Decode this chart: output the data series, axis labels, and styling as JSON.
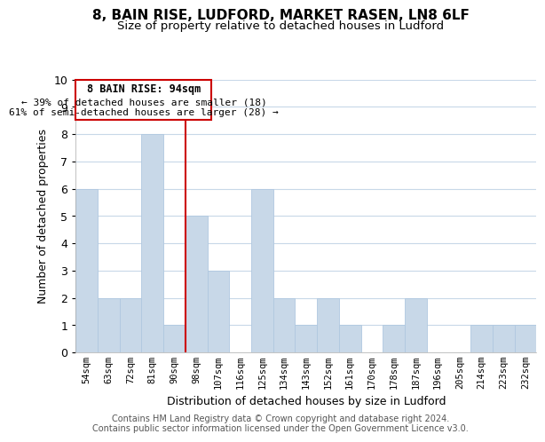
{
  "title_line1": "8, BAIN RISE, LUDFORD, MARKET RASEN, LN8 6LF",
  "title_line2": "Size of property relative to detached houses in Ludford",
  "xlabel": "Distribution of detached houses by size in Ludford",
  "ylabel": "Number of detached properties",
  "categories": [
    "54sqm",
    "63sqm",
    "72sqm",
    "81sqm",
    "90sqm",
    "98sqm",
    "107sqm",
    "116sqm",
    "125sqm",
    "134sqm",
    "143sqm",
    "152sqm",
    "161sqm",
    "170sqm",
    "178sqm",
    "187sqm",
    "196sqm",
    "205sqm",
    "214sqm",
    "223sqm",
    "232sqm"
  ],
  "values": [
    6,
    2,
    2,
    8,
    1,
    5,
    3,
    0,
    6,
    2,
    1,
    2,
    1,
    0,
    1,
    2,
    0,
    0,
    1,
    1,
    1
  ],
  "bar_color": "#c8d8e8",
  "bar_edge_color": "#b0c8e0",
  "highlight_line_color": "#cc0000",
  "ylim": [
    0,
    10
  ],
  "yticks": [
    0,
    1,
    2,
    3,
    4,
    5,
    6,
    7,
    8,
    9,
    10
  ],
  "annotation_title": "8 BAIN RISE: 94sqm",
  "annotation_line1": "← 39% of detached houses are smaller (18)",
  "annotation_line2": "61% of semi-detached houses are larger (28) →",
  "annotation_box_color": "#ffffff",
  "annotation_box_edgecolor": "#cc0000",
  "footer_line1": "Contains HM Land Registry data © Crown copyright and database right 2024.",
  "footer_line2": "Contains public sector information licensed under the Open Government Licence v3.0.",
  "grid_color": "#c8d8e8",
  "background_color": "#ffffff"
}
